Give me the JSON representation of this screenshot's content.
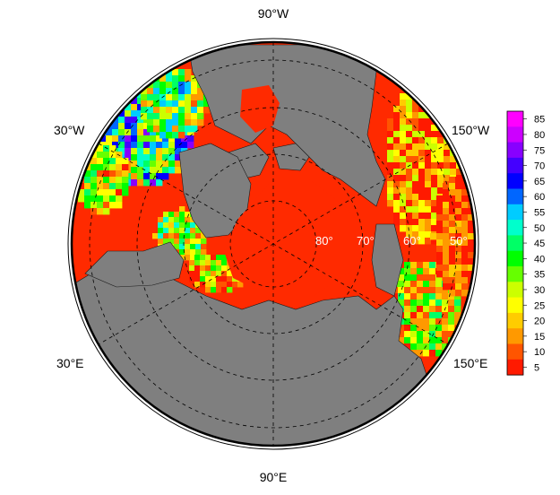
{
  "map": {
    "projection": "north-polar-stereographic",
    "graticule": "dashed",
    "land_color": "#7f7f7f",
    "longitude_labels": {
      "top": "90°W",
      "bottom": "90°E",
      "upper_left": "30°W",
      "upper_right": "150°W",
      "lower_left": "30°E",
      "lower_right": "150°E"
    },
    "latitude_labels": [
      "80°",
      "70°",
      "60°",
      "50°"
    ]
  },
  "colorbar": {
    "ticks": [
      "85",
      "80",
      "75",
      "70",
      "65",
      "60",
      "55",
      "50",
      "45",
      "40",
      "35",
      "30",
      "25",
      "20",
      "15",
      "10",
      "5"
    ],
    "colors": [
      "#ff00ff",
      "#cc00ff",
      "#8800ff",
      "#4400ff",
      "#0000ff",
      "#0066ff",
      "#00ccff",
      "#00ffcc",
      "#00ff66",
      "#00ff00",
      "#66ff00",
      "#ccff00",
      "#ffff00",
      "#ffcc00",
      "#ff9900",
      "#ff5500",
      "#ff1a00"
    ]
  }
}
